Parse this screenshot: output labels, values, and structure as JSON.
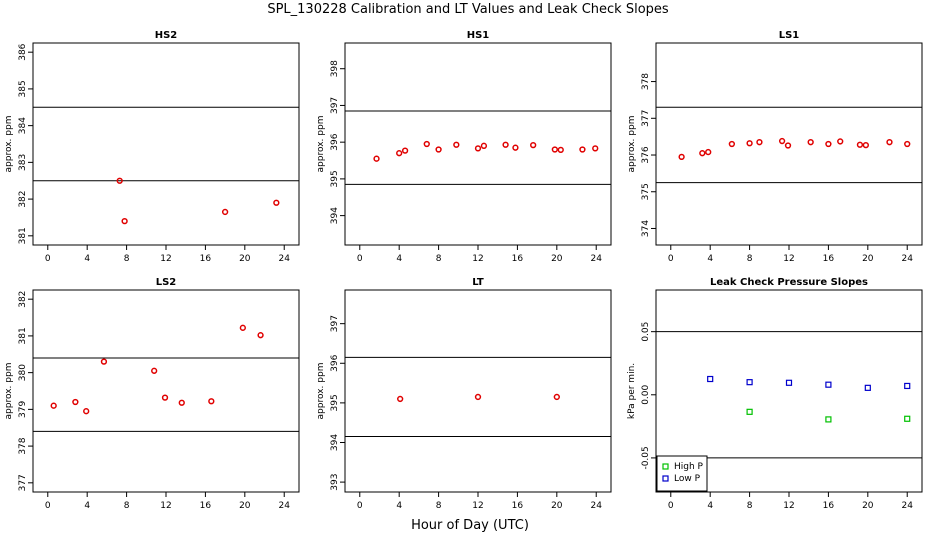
{
  "title": "SPL_130228  Calibration and LT Values and Leak Check Slopes",
  "xlabel": "Hour of Day (UTC)",
  "chart_data": [
    {
      "type": "scatter",
      "title": "HS2",
      "ylabel": "approx. ppm",
      "xlim": [
        -1.5,
        25.5
      ],
      "ylim": [
        380.75,
        386.25
      ],
      "xticks": [
        0,
        4,
        8,
        12,
        16,
        20,
        24
      ],
      "yticks": [
        381,
        382,
        383,
        384,
        385,
        386
      ],
      "reference_lines": [
        384.5,
        382.5
      ],
      "series": [
        {
          "color": "#e00000",
          "marker": "circle",
          "x": [
            7.3,
            7.8,
            18.0,
            23.2
          ],
          "y": [
            382.5,
            381.4,
            381.65,
            381.9
          ]
        }
      ]
    },
    {
      "type": "scatter",
      "title": "HS1",
      "ylabel": "approx. ppm",
      "xlim": [
        -1.5,
        25.5
      ],
      "ylim": [
        393.2,
        398.7
      ],
      "xticks": [
        0,
        4,
        8,
        12,
        16,
        20,
        24
      ],
      "yticks": [
        394,
        395,
        396,
        397,
        398
      ],
      "reference_lines": [
        396.85,
        394.85
      ],
      "series": [
        {
          "color": "#e00000",
          "marker": "circle",
          "x": [
            1.7,
            4.0,
            4.6,
            6.8,
            8.0,
            9.8,
            12.0,
            12.6,
            14.8,
            15.8,
            17.6,
            19.8,
            20.4,
            22.6,
            23.9
          ],
          "y": [
            395.55,
            395.7,
            395.77,
            395.95,
            395.8,
            395.93,
            395.83,
            395.9,
            395.93,
            395.85,
            395.92,
            395.8,
            395.79,
            395.8,
            395.83
          ]
        }
      ]
    },
    {
      "type": "scatter",
      "title": "LS1",
      "ylabel": "approx. ppm",
      "xlim": [
        -1.5,
        25.5
      ],
      "ylim": [
        373.55,
        379.05
      ],
      "xticks": [
        0,
        4,
        8,
        12,
        16,
        20,
        24
      ],
      "yticks": [
        374,
        375,
        376,
        377,
        378
      ],
      "reference_lines": [
        377.3,
        375.25
      ],
      "series": [
        {
          "color": "#e00000",
          "marker": "circle",
          "x": [
            1.1,
            3.2,
            3.8,
            6.2,
            8.0,
            9.0,
            11.3,
            11.9,
            14.2,
            16.0,
            17.2,
            19.2,
            19.8,
            22.2,
            24.0
          ],
          "y": [
            375.95,
            376.05,
            376.08,
            376.3,
            376.32,
            376.35,
            376.38,
            376.26,
            376.35,
            376.3,
            376.37,
            376.28,
            376.27,
            376.35,
            376.3
          ]
        }
      ]
    },
    {
      "type": "scatter",
      "title": "LS2",
      "ylabel": "approx. ppm",
      "xlim": [
        -1.5,
        25.5
      ],
      "ylim": [
        376.75,
        382.25
      ],
      "xticks": [
        0,
        4,
        8,
        12,
        16,
        20,
        24
      ],
      "yticks": [
        377,
        378,
        379,
        380,
        381,
        382
      ],
      "reference_lines": [
        380.4,
        378.4
      ],
      "series": [
        {
          "color": "#e00000",
          "marker": "circle",
          "x": [
            0.6,
            2.8,
            3.9,
            5.7,
            10.8,
            11.9,
            13.6,
            16.6,
            19.8,
            21.6
          ],
          "y": [
            379.1,
            379.2,
            378.95,
            380.3,
            380.05,
            379.32,
            379.18,
            379.22,
            381.22,
            381.02
          ]
        }
      ]
    },
    {
      "type": "scatter",
      "title": "LT",
      "ylabel": "approx. ppm",
      "xlim": [
        -1.5,
        25.5
      ],
      "ylim": [
        392.75,
        397.85
      ],
      "xticks": [
        0,
        4,
        8,
        12,
        16,
        20,
        24
      ],
      "yticks": [
        393,
        394,
        395,
        396,
        397
      ],
      "reference_lines": [
        396.15,
        394.15
      ],
      "series": [
        {
          "color": "#e00000",
          "marker": "circle",
          "x": [
            4.1,
            12.0,
            20.0
          ],
          "y": [
            395.1,
            395.15,
            395.15
          ]
        }
      ]
    },
    {
      "type": "scatter",
      "title": "Leak Check Pressure Slopes",
      "ylabel": "kPa per min.",
      "xlim": [
        -1.5,
        25.5
      ],
      "ylim": [
        -0.077,
        0.083
      ],
      "xticks": [
        0,
        4,
        8,
        12,
        16,
        20,
        24
      ],
      "yticks": [
        -0.05,
        0.0,
        0.05
      ],
      "ytick_labels": [
        "-0.05",
        "0.00",
        "0.05"
      ],
      "reference_lines": [
        0.05,
        -0.05
      ],
      "legend": {
        "placement": "bottom-left"
      },
      "series": [
        {
          "name": "High P",
          "color": "#00c000",
          "marker": "square",
          "x": [
            8.0,
            16.0,
            24.0
          ],
          "y": [
            -0.0135,
            -0.0195,
            -0.019
          ]
        },
        {
          "name": "Low P",
          "color": "#0000cc",
          "marker": "square",
          "x": [
            4.0,
            8.0,
            12.0,
            16.0,
            20.0,
            24.0
          ],
          "y": [
            0.0125,
            0.01,
            0.0095,
            0.008,
            0.0055,
            0.007
          ]
        }
      ]
    }
  ]
}
